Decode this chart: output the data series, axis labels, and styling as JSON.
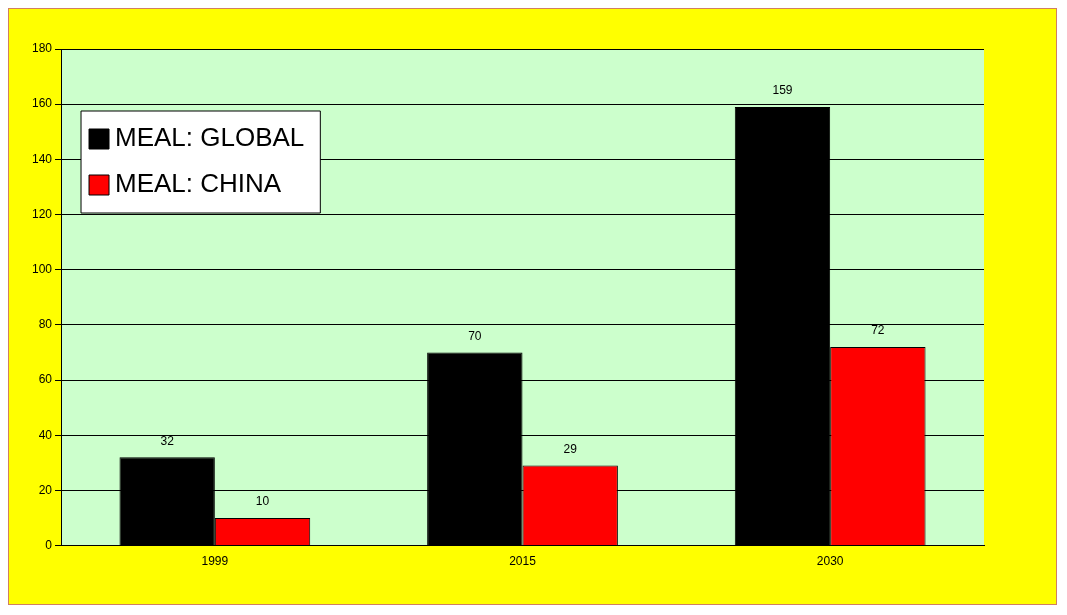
{
  "chart_data": {
    "type": "bar",
    "categories": [
      "1999",
      "2015",
      "2030"
    ],
    "series": [
      {
        "name": "MEAL: GLOBAL",
        "color": "#000000",
        "values": [
          32,
          70,
          159
        ]
      },
      {
        "name": "MEAL: CHINA",
        "color": "#ff0000",
        "values": [
          10,
          29,
          72
        ]
      }
    ],
    "ylim": [
      0,
      180
    ],
    "yticks": [
      0,
      20,
      40,
      60,
      80,
      100,
      120,
      140,
      160,
      180
    ],
    "grid": "y",
    "legend": "top left",
    "data_labels": true
  }
}
